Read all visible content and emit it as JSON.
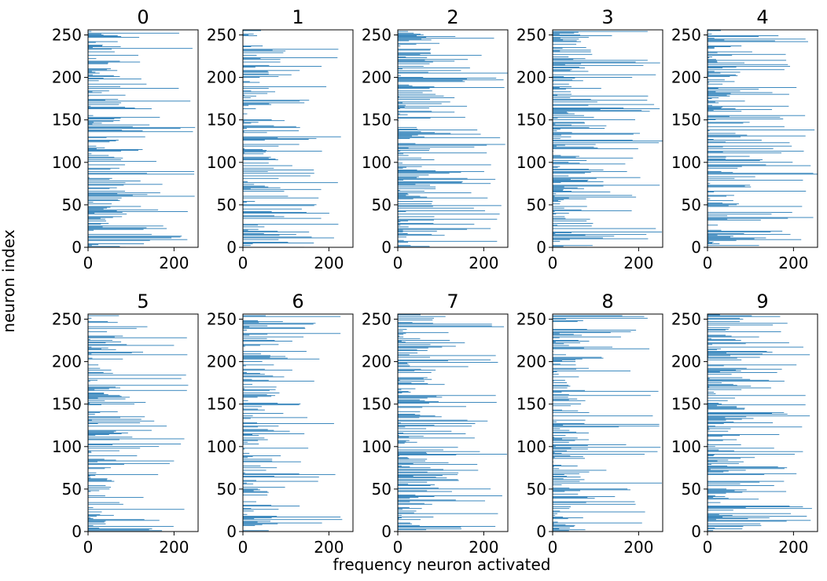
{
  "figure": {
    "ylabel": "neuron index",
    "xlabel": "frequency neuron activated"
  },
  "chart_data": {
    "type": "bar",
    "orientation": "horizontal",
    "neurons": 256,
    "xlim": [
      0,
      256
    ],
    "ylim": [
      0,
      256
    ],
    "xticks": [
      0,
      200
    ],
    "yticks": [
      0,
      50,
      100,
      150,
      200,
      250
    ],
    "bar_color": "#1f77b4",
    "panels": [
      {
        "title": "0",
        "seed": 11,
        "density": 0.55,
        "max": 250
      },
      {
        "title": "1",
        "seed": 23,
        "density": 0.48,
        "max": 250
      },
      {
        "title": "2",
        "seed": 37,
        "density": 0.65,
        "max": 256
      },
      {
        "title": "3",
        "seed": 41,
        "density": 0.62,
        "max": 256
      },
      {
        "title": "4",
        "seed": 53,
        "density": 0.55,
        "max": 256
      },
      {
        "title": "5",
        "seed": 67,
        "density": 0.55,
        "max": 240
      },
      {
        "title": "6",
        "seed": 71,
        "density": 0.55,
        "max": 240
      },
      {
        "title": "7",
        "seed": 83,
        "density": 0.62,
        "max": 256
      },
      {
        "title": "8",
        "seed": 97,
        "density": 0.62,
        "max": 256
      },
      {
        "title": "9",
        "seed": 101,
        "density": 0.58,
        "max": 256
      }
    ]
  }
}
